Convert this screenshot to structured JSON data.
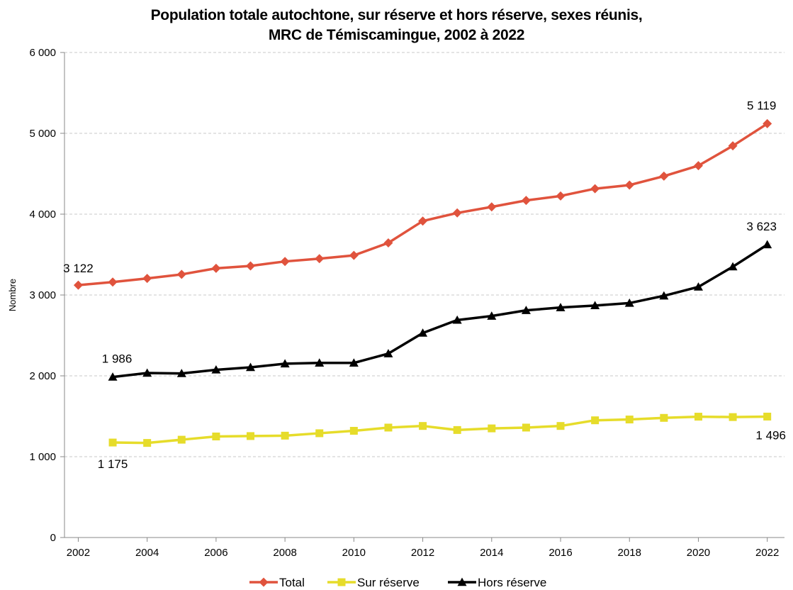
{
  "chart_data": {
    "type": "line",
    "title_line1": "Population totale autochtone, sur réserve et hors réserve, sexes réunis,",
    "title_line2": "MRC de Témiscamingue, 2002 à 2022",
    "ylabel": "Nombre",
    "xlabel": "",
    "ylim": [
      0,
      6000
    ],
    "yticks": [
      0,
      1000,
      2000,
      3000,
      4000,
      5000,
      6000
    ],
    "ytick_labels": [
      "0",
      "1 000",
      "2 000",
      "3 000",
      "4 000",
      "5 000",
      "6 000"
    ],
    "xticks": [
      2002,
      2004,
      2006,
      2008,
      2010,
      2012,
      2014,
      2016,
      2018,
      2020,
      2022
    ],
    "xtick_labels": [
      "2002",
      "2004",
      "2006",
      "2008",
      "2010",
      "2012",
      "2014",
      "2016",
      "2018",
      "2020",
      "2022"
    ],
    "grid": true,
    "legend_position": "bottom",
    "series": [
      {
        "name": "Total",
        "color": "#e0533d",
        "marker": "diamond",
        "x": [
          2002,
          2003,
          2004,
          2005,
          2006,
          2007,
          2008,
          2009,
          2010,
          2011,
          2012,
          2013,
          2014,
          2015,
          2016,
          2017,
          2018,
          2019,
          2020,
          2021,
          2022
        ],
        "values": [
          3122,
          3160,
          3205,
          3255,
          3330,
          3360,
          3415,
          3450,
          3490,
          3645,
          3915,
          4015,
          4090,
          4170,
          4225,
          4315,
          4360,
          4470,
          4600,
          4845,
          5119
        ],
        "labels": [
          {
            "index": 0,
            "text": "3 122"
          },
          {
            "index": 20,
            "text": "5 119"
          }
        ]
      },
      {
        "name": "Sur réserve",
        "color": "#e6dc2a",
        "marker": "square",
        "x": [
          2003,
          2004,
          2005,
          2006,
          2007,
          2008,
          2009,
          2010,
          2011,
          2012,
          2013,
          2014,
          2015,
          2016,
          2017,
          2018,
          2019,
          2020,
          2021,
          2022
        ],
        "values": [
          1175,
          1170,
          1210,
          1250,
          1255,
          1260,
          1290,
          1320,
          1360,
          1380,
          1330,
          1350,
          1360,
          1380,
          1450,
          1460,
          1480,
          1495,
          1490,
          1496
        ],
        "labels": [
          {
            "index": 0,
            "text": "1 175"
          },
          {
            "index": 19,
            "text": "1 496"
          }
        ]
      },
      {
        "name": "Hors réserve",
        "color": "#000000",
        "marker": "triangle",
        "x": [
          2003,
          2004,
          2005,
          2006,
          2007,
          2008,
          2009,
          2010,
          2011,
          2012,
          2013,
          2014,
          2015,
          2016,
          2017,
          2018,
          2019,
          2020,
          2021,
          2022
        ],
        "values": [
          1986,
          2035,
          2030,
          2075,
          2105,
          2150,
          2160,
          2160,
          2275,
          2530,
          2690,
          2740,
          2810,
          2845,
          2870,
          2900,
          2990,
          3100,
          3350,
          3623
        ],
        "labels": [
          {
            "index": 0,
            "text": "1 986"
          },
          {
            "index": 19,
            "text": "3 623"
          }
        ]
      }
    ]
  }
}
